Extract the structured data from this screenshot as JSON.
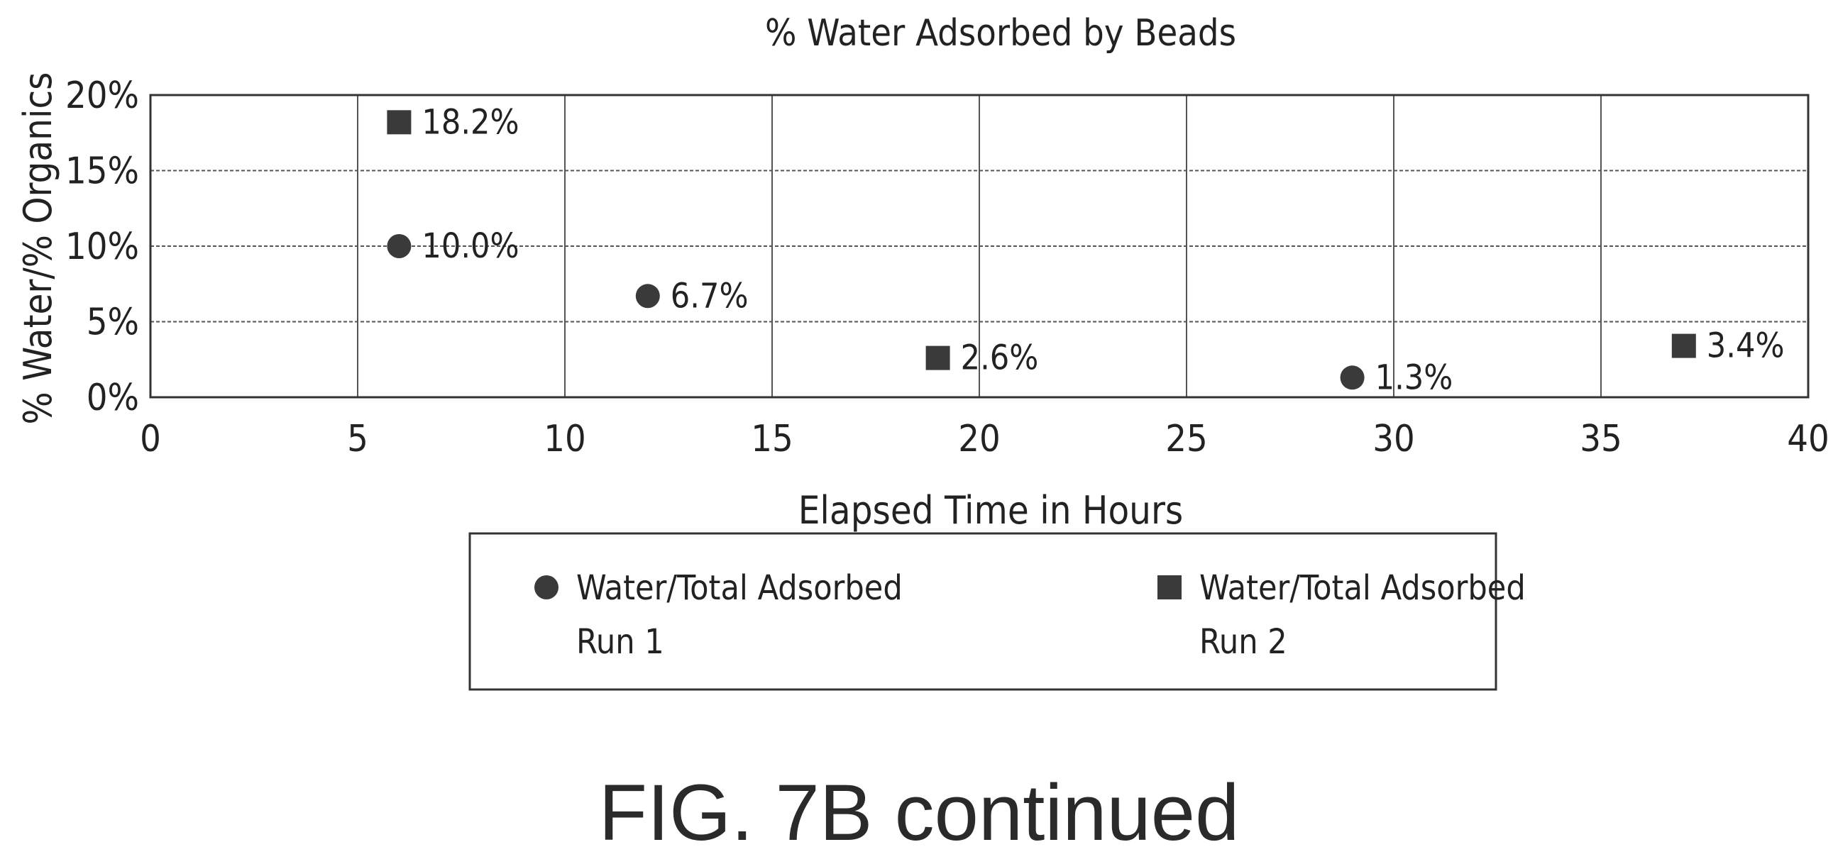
{
  "chart_data": {
    "type": "scatter",
    "title": "% Water Adsorbed by Beads",
    "xlabel": "Elapsed Time in Hours",
    "ylabel": "% Water/% Organics",
    "xlim": [
      0,
      40
    ],
    "ylim": [
      0,
      20
    ],
    "x_ticks": [
      0,
      5,
      10,
      15,
      20,
      25,
      30,
      35,
      40
    ],
    "x_tick_labels": [
      "0",
      "5",
      "10",
      "15",
      "20",
      "25",
      "30",
      "35",
      "40"
    ],
    "y_ticks": [
      0,
      5,
      10,
      15,
      20
    ],
    "y_tick_labels": [
      "0%",
      "5%",
      "10%",
      "15%",
      "20%"
    ],
    "grid": true,
    "legend_position": "bottom-center",
    "series": [
      {
        "name": "Water/Total Adsorbed Run 1",
        "legend_lines": [
          "Water/Total Adsorbed",
          "Run 1"
        ],
        "marker": "circle",
        "points": [
          {
            "x": 6,
            "y": 10.0,
            "label": "10.0%"
          },
          {
            "x": 12,
            "y": 6.7,
            "label": "6.7%"
          },
          {
            "x": 29,
            "y": 1.3,
            "label": "1.3%"
          }
        ]
      },
      {
        "name": "Water/Total Adsorbed Run 2",
        "legend_lines": [
          "Water/Total Adsorbed",
          "Run 2"
        ],
        "marker": "square",
        "points": [
          {
            "x": 6,
            "y": 18.2,
            "label": "18.2%"
          },
          {
            "x": 19,
            "y": 2.6,
            "label": "2.6%"
          },
          {
            "x": 37,
            "y": 3.4,
            "label": "3.4%"
          }
        ]
      }
    ],
    "marker_color": "#3a3a3a"
  },
  "caption": "FIG. 7B continued"
}
